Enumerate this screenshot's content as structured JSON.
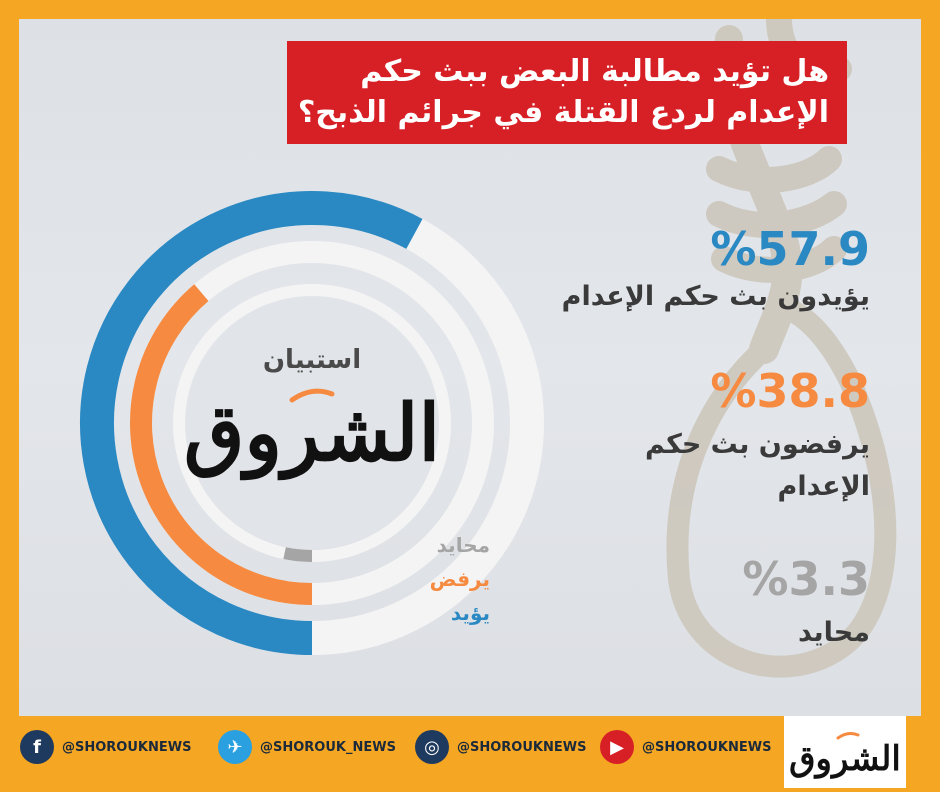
{
  "title_lines": [
    "هل تؤيد مطالبة البعض ببث حكم",
    "الإعدام لردع القتلة في جرائم الذبح؟"
  ],
  "chart_data": {
    "type": "donut",
    "series": [
      {
        "name": "يؤيد",
        "value": 57.9,
        "color": "#2a88c2"
      },
      {
        "name": "يرفض",
        "value": 38.8,
        "color": "#f58a40"
      },
      {
        "name": "محايد",
        "value": 3.3,
        "color": "#a5a5a5"
      }
    ],
    "center_label": "استبيان",
    "center_logo_text": "الشروق"
  },
  "stats": [
    {
      "pct": "%57.9",
      "label": "يؤيدون بث حكم الإعدام",
      "color": "#2a88c2"
    },
    {
      "pct": "%38.8",
      "label_lines": [
        "يرفضون بث حكم",
        "الإعدام"
      ],
      "color": "#f58a40"
    },
    {
      "pct": "%3.3",
      "label": "محايد",
      "color": "#a5a5a5"
    }
  ],
  "legend": [
    {
      "label": "محايد",
      "color": "#a5a5a5"
    },
    {
      "label": "يرفض",
      "color": "#f58a40"
    },
    {
      "label": "يؤيد",
      "color": "#2a88c2"
    }
  ],
  "footer": {
    "socials": [
      {
        "icon": "facebook-icon",
        "glyph": "f",
        "handle": "@SHOROUKNEWS"
      },
      {
        "icon": "twitter-icon",
        "glyph": "✈",
        "handle": "@SHOROUK_NEWS"
      },
      {
        "icon": "instagram-icon",
        "glyph": "◎",
        "handle": "@SHOROUKNEWS"
      },
      {
        "icon": "youtube-icon",
        "glyph": "▶",
        "handle": "@SHOROUKNEWS"
      }
    ],
    "logo_text": "الشروق"
  }
}
